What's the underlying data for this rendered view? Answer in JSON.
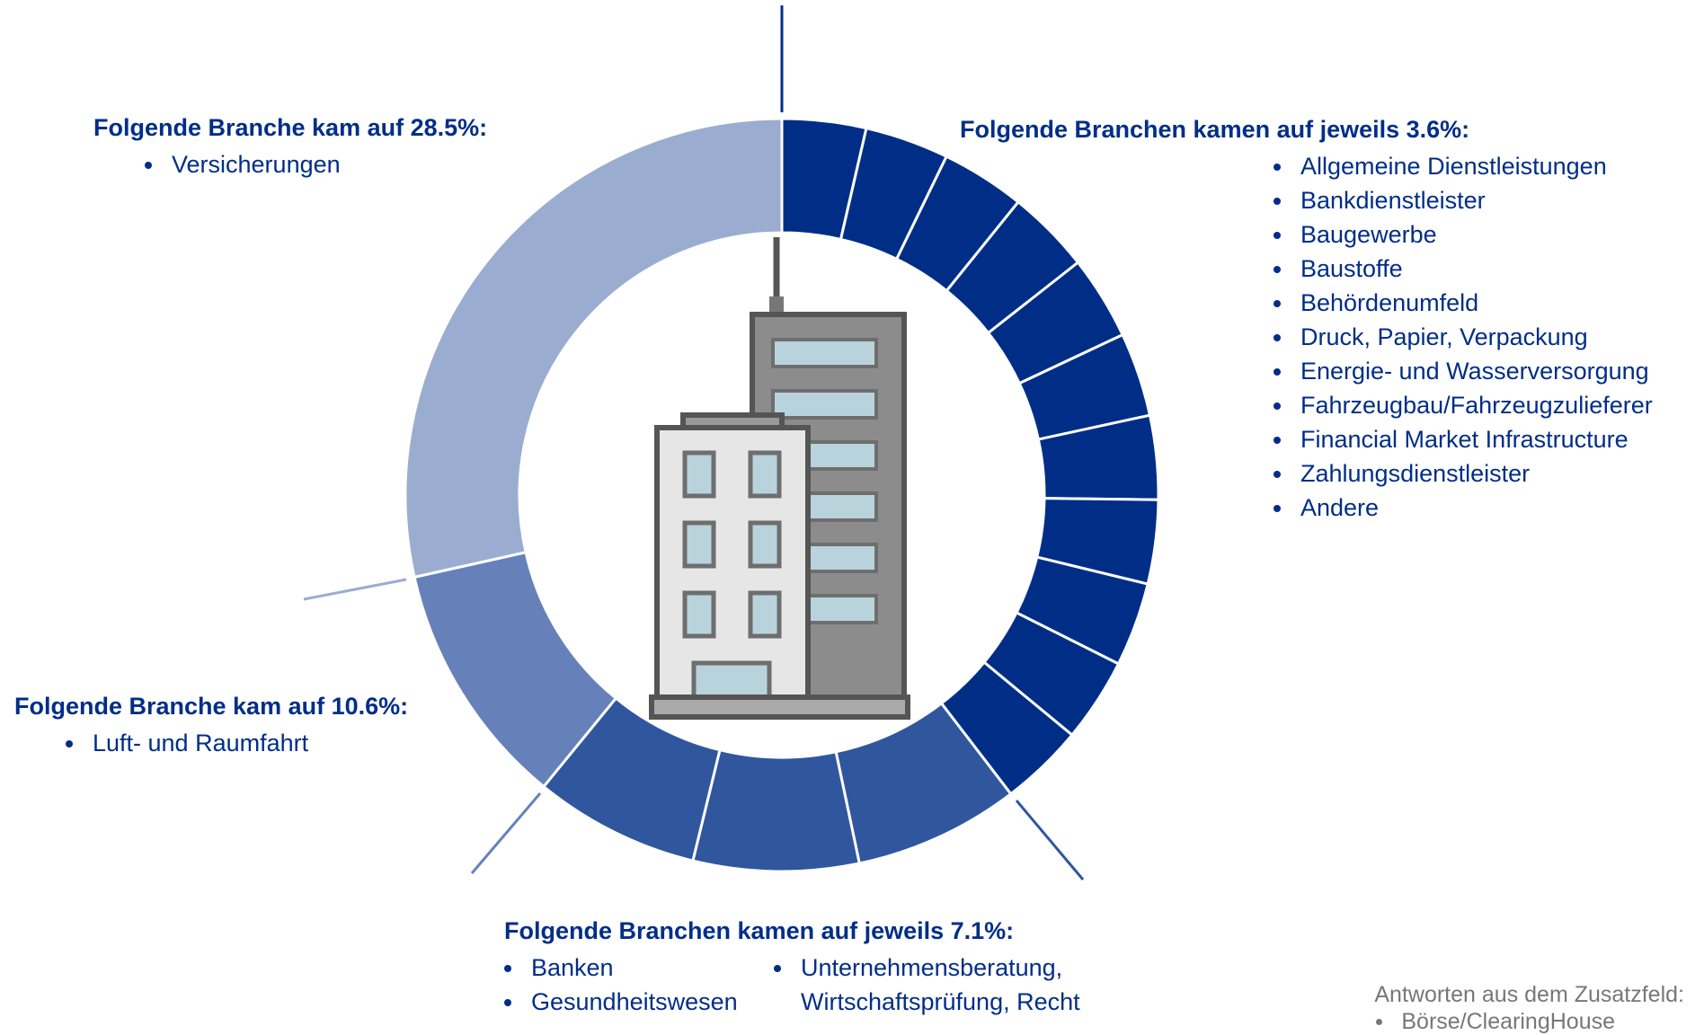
{
  "chart_data": {
    "type": "donut",
    "groups": [
      {
        "heading": "Folgende Branchen kamen auf jeweils 3.6%:",
        "value": 3.6,
        "color": "#002e87",
        "items": [
          "Allgemeine Dienstleistungen",
          "Bankdienstleister",
          "Baugewerbe",
          "Baustoffe",
          "Behördenumfeld",
          "Druck, Papier, Verpackung",
          "Energie- und Wasserversorgung",
          "Fahrzeugbau/Fahrzeugzulieferer",
          "Financial Market Infrastructure",
          "Zahlungsdienstleister",
          "Andere"
        ]
      },
      {
        "heading": "Folgende Branchen kamen auf jeweils 7.1%:",
        "value": 7.1,
        "color": "#30569e",
        "items": [
          "Banken",
          "Gesundheitswesen",
          "Unternehmensberatung, Wirtschaftsprüfung, Recht"
        ]
      },
      {
        "heading": "Folgende Branche kam auf 10.6%:",
        "value": 10.6,
        "color": "#6681b9",
        "items": [
          "Luft- und Raumfahrt"
        ]
      },
      {
        "heading": "Folgende Branche kam auf 28.5%:",
        "value": 28.5,
        "color": "#9aadd1",
        "items": [
          "Versicherungen"
        ]
      }
    ]
  },
  "note": {
    "title": "Antworten aus dem Zusatzfeld:",
    "items": [
      "Börse/ClearingHouse"
    ]
  }
}
